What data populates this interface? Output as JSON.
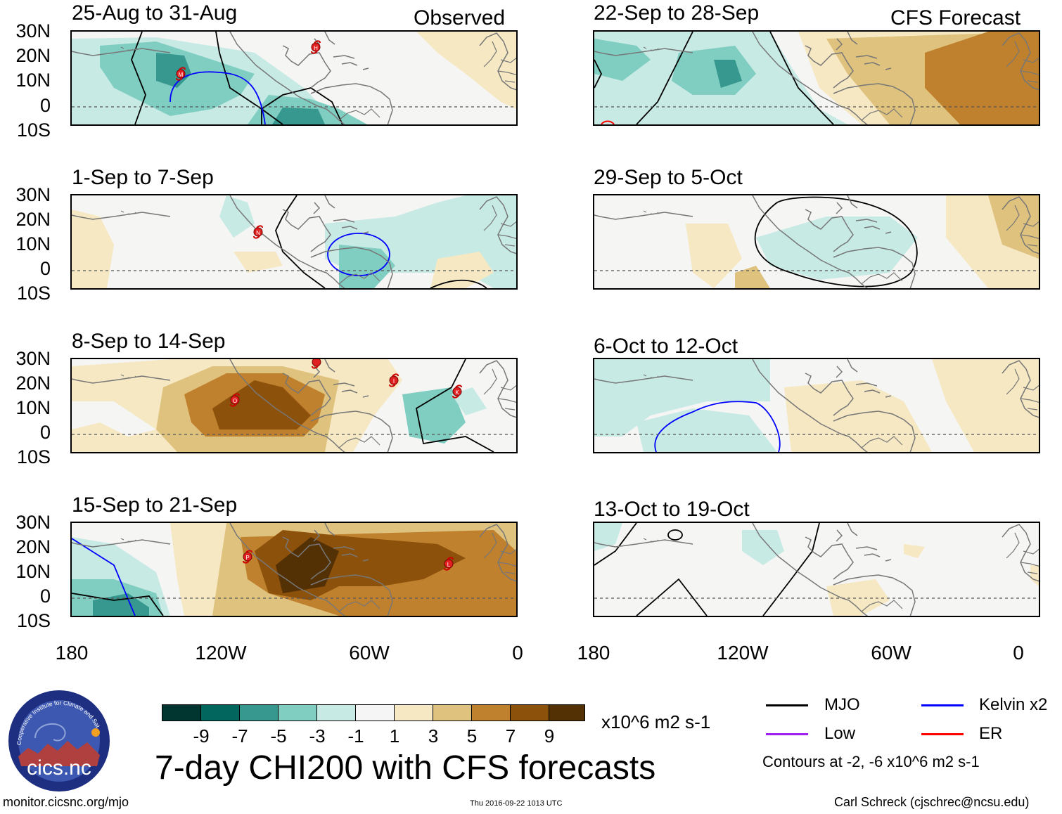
{
  "header": {
    "observed_label": "Observed",
    "forecast_label": "CFS Forecast"
  },
  "panels_left": [
    {
      "title": "25-Aug to 31-Aug",
      "storms": [
        "M",
        "H"
      ]
    },
    {
      "title": "1-Sep to 7-Sep",
      "storms": [
        "N"
      ]
    },
    {
      "title": "8-Sep to 14-Sep",
      "storms": [
        "O",
        "I",
        "K"
      ]
    },
    {
      "title": "15-Sep to 21-Sep",
      "storms": [
        "P",
        "L"
      ]
    }
  ],
  "panels_right": [
    {
      "title": "22-Sep to 28-Sep"
    },
    {
      "title": "29-Sep to 5-Oct"
    },
    {
      "title": "6-Oct to 12-Oct"
    },
    {
      "title": "13-Oct to 19-Oct"
    }
  ],
  "lat_labels": [
    "30N",
    "20N",
    "10N",
    "0",
    "10S"
  ],
  "lon_labels": [
    "180",
    "120W",
    "60W",
    "0"
  ],
  "colorbar": {
    "colors": [
      "#01352f",
      "#02665e",
      "#36988f",
      "#80cdc1",
      "#c7eae5",
      "#f5f5f5",
      "#f6e8c3",
      "#dfc27d",
      "#bf812d",
      "#8c510a",
      "#543005"
    ],
    "labels": [
      "-9",
      "-7",
      "-5",
      "-3",
      "-1",
      "1",
      "3",
      "5",
      "7",
      "9"
    ],
    "units": "x10^6 m2 s-1"
  },
  "main_title": "7-day CHI200 with CFS forecasts",
  "legend": {
    "mjo": {
      "label": "MJO",
      "color": "#000000"
    },
    "kelvin": {
      "label": "Kelvin x2",
      "color": "#0000ff"
    },
    "low": {
      "label": "Low",
      "color": "#a020f0"
    },
    "er": {
      "label": "ER",
      "color": "#ff0000"
    },
    "contours_note": "Contours at -2, -6 x10^6 m2 s-1"
  },
  "logo": {
    "org_text": "Cooperative Institute for Climate and Satellites",
    "short_name": "cics.nc"
  },
  "footer": {
    "url": "monitor.cicsnc.org/mjo",
    "timestamp": "Thu 2016-09-22 1013 UTC",
    "author": "Carl Schreck (cjschrec@ncsu.edu)"
  }
}
